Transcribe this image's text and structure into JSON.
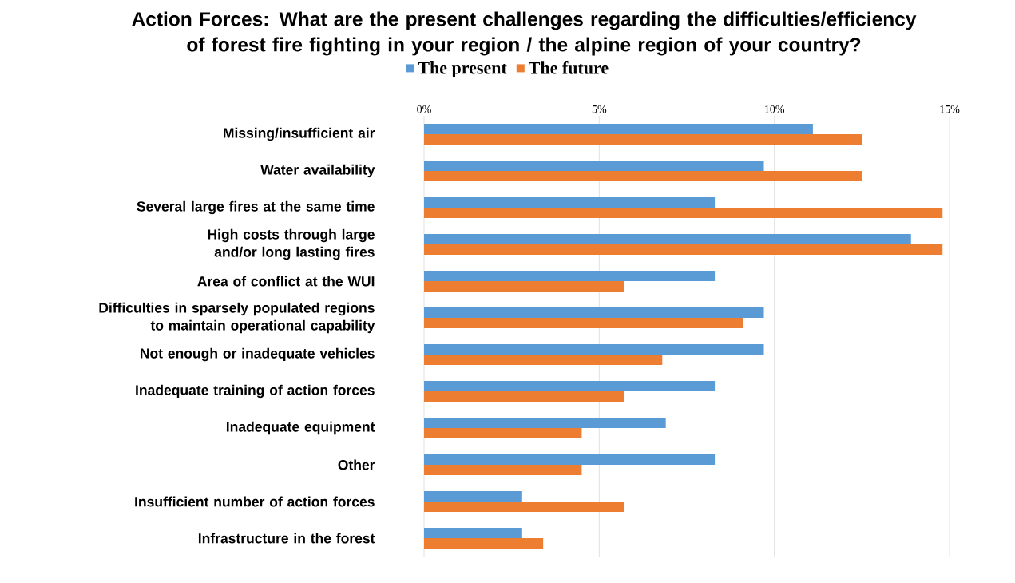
{
  "chart_data": {
    "type": "bar",
    "orientation": "horizontal",
    "title": "Action Forces: What are the present challenges regarding the difficulties/efficiency of forest fire fighting in your region / the alpine region of your country?",
    "categories": [
      "Missing/insufficient air",
      "Water availability",
      "Several large fires at the same time",
      "High costs through large and/or long lasting fires",
      "Area of conflict at the WUI",
      "Difficulties in sparsely populated regions to maintain operational capability",
      "Not enough or inadequate vehicles",
      "Inadequate training of action forces",
      "Inadequate equipment",
      "Other",
      "Insufficient number of action forces",
      "Infrastructure in the forest"
    ],
    "series": [
      {
        "name": "The present",
        "color": "#5b9bd5",
        "values": [
          11.1,
          9.7,
          8.3,
          13.9,
          8.3,
          9.7,
          9.7,
          8.3,
          6.9,
          8.3,
          2.8,
          2.8
        ]
      },
      {
        "name": "The future",
        "color": "#ed7d31",
        "values": [
          12.5,
          12.5,
          14.8,
          14.8,
          5.7,
          9.1,
          6.8,
          5.7,
          4.5,
          4.5,
          5.7,
          3.4
        ]
      }
    ],
    "xlim": [
      0,
      15
    ],
    "xticks": [
      {
        "value": 0,
        "label": "0%"
      },
      {
        "value": 5,
        "label": "5%"
      },
      {
        "value": 10,
        "label": "10%"
      },
      {
        "value": 15,
        "label": "15%"
      }
    ],
    "grid": "x",
    "legend": "top"
  }
}
